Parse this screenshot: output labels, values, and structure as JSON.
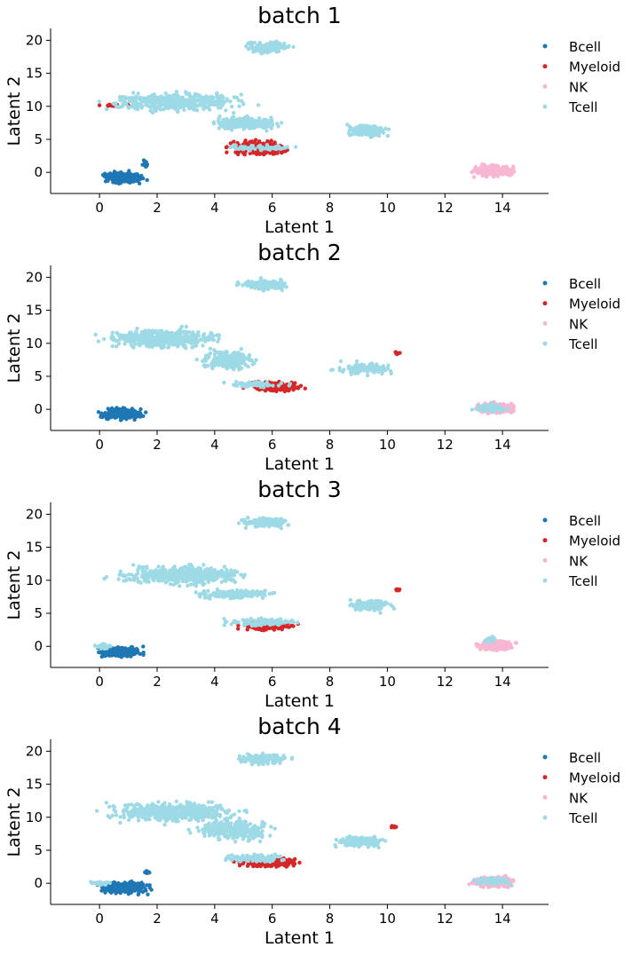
{
  "colors": {
    "Bcell": "#1f77b4",
    "Myeloid": "#d62728",
    "NK": "#f7b6d2",
    "Tcell": "#9edae5"
  },
  "chart_data": [
    {
      "type": "scatter",
      "title": "batch 1",
      "xlabel": "Latent 1",
      "ylabel": "Latent 2",
      "xlim": [
        -1.7,
        15.6
      ],
      "ylim": [
        -3.2,
        21.8
      ],
      "xticks": [
        0,
        2,
        4,
        6,
        8,
        10,
        12,
        14
      ],
      "yticks": [
        0,
        5,
        10,
        15,
        20
      ],
      "legend": {
        "location": "right",
        "entries": [
          "Bcell",
          "Myeloid",
          "NK",
          "Tcell"
        ]
      },
      "series": [
        {
          "name": "Bcell",
          "clusters": [
            {
              "x": [
                -0.4,
                2.0
              ],
              "y": [
                -2.1,
                0.5
              ],
              "weight": 1.0
            },
            {
              "x": [
                1.4,
                1.8
              ],
              "y": [
                0.5,
                2.2
              ],
              "weight": 0.05
            }
          ]
        },
        {
          "name": "Myeloid",
          "clusters": [
            {
              "x": [
                3.9,
                7.1
              ],
              "y": [
                2.0,
                5.4
              ],
              "weight": 1.0
            },
            {
              "x": [
                -0.8,
                1.8
              ],
              "y": [
                9.7,
                10.5
              ],
              "weight": 0.05
            }
          ]
        },
        {
          "name": "NK",
          "clusters": [
            {
              "x": [
                12.6,
                14.8
              ],
              "y": [
                -1.0,
                1.5
              ],
              "weight": 1.0
            }
          ]
        },
        {
          "name": "Tcell",
          "clusters": [
            {
              "x": [
                4.5,
                7.1
              ],
              "y": [
                17.5,
                20.3
              ],
              "weight": 0.5
            },
            {
              "x": [
                -0.9,
                6.4
              ],
              "y": [
                8.5,
                12.8
              ],
              "weight": 1.6
            },
            {
              "x": [
                3.0,
                7.1
              ],
              "y": [
                5.8,
                9.0
              ],
              "weight": 0.8
            },
            {
              "x": [
                8.0,
                10.6
              ],
              "y": [
                4.8,
                7.8
              ],
              "weight": 0.5
            },
            {
              "x": [
                3.8,
                7.3
              ],
              "y": [
                3.0,
                4.5
              ],
              "weight": 0.2
            }
          ]
        }
      ]
    },
    {
      "type": "scatter",
      "title": "batch 2",
      "xlabel": "Latent 1",
      "ylabel": "Latent 2",
      "xlim": [
        -1.7,
        15.6
      ],
      "ylim": [
        -3.2,
        21.8
      ],
      "xticks": [
        0,
        2,
        4,
        6,
        8,
        10,
        12,
        14
      ],
      "yticks": [
        0,
        5,
        10,
        15,
        20
      ],
      "legend": {
        "location": "right",
        "entries": [
          "Bcell",
          "Myeloid",
          "NK",
          "Tcell"
        ]
      },
      "series": [
        {
          "name": "Bcell",
          "clusters": [
            {
              "x": [
                -0.4,
                2.0
              ],
              "y": [
                -2.0,
                0.6
              ],
              "weight": 1.0
            }
          ]
        },
        {
          "name": "Myeloid",
          "clusters": [
            {
              "x": [
                4.6,
                7.6
              ],
              "y": [
                2.3,
                4.5
              ],
              "weight": 0.7
            },
            {
              "x": [
                10.2,
                10.5
              ],
              "y": [
                8.2,
                8.8
              ],
              "weight": 0.03
            }
          ]
        },
        {
          "name": "NK",
          "clusters": [
            {
              "x": [
                12.7,
                14.8
              ],
              "y": [
                -1.0,
                1.4
              ],
              "weight": 1.0
            }
          ]
        },
        {
          "name": "Tcell",
          "clusters": [
            {
              "x": [
                4.3,
                7.1
              ],
              "y": [
                17.5,
                20.2
              ],
              "weight": 0.5
            },
            {
              "x": [
                -0.9,
                5.3
              ],
              "y": [
                8.5,
                13.0
              ],
              "weight": 1.6
            },
            {
              "x": [
                2.8,
                6.0
              ],
              "y": [
                5.0,
                10.0
              ],
              "weight": 0.8
            },
            {
              "x": [
                7.8,
                10.6
              ],
              "y": [
                4.8,
                7.6
              ],
              "weight": 0.5
            },
            {
              "x": [
                3.4,
                7.4
              ],
              "y": [
                3.0,
                4.5
              ],
              "weight": 0.2
            },
            {
              "x": [
                12.6,
                14.6
              ],
              "y": [
                -0.8,
                1.2
              ],
              "weight": 0.2
            }
          ]
        }
      ]
    },
    {
      "type": "scatter",
      "title": "batch 3",
      "xlabel": "Latent 1",
      "ylabel": "Latent 2",
      "xlim": [
        -1.7,
        15.6
      ],
      "ylim": [
        -3.2,
        21.8
      ],
      "xticks": [
        0,
        2,
        4,
        6,
        8,
        10,
        12,
        14
      ],
      "yticks": [
        0,
        5,
        10,
        15,
        20
      ],
      "legend": {
        "location": "right",
        "entries": [
          "Bcell",
          "Myeloid",
          "NK",
          "Tcell"
        ]
      },
      "series": [
        {
          "name": "Bcell",
          "clusters": [
            {
              "x": [
                -0.4,
                1.8
              ],
              "y": [
                -2.1,
                0.4
              ],
              "weight": 1.0
            }
          ]
        },
        {
          "name": "Myeloid",
          "clusters": [
            {
              "x": [
                4.5,
                7.2
              ],
              "y": [
                2.0,
                4.3
              ],
              "weight": 0.7
            },
            {
              "x": [
                10.2,
                10.5
              ],
              "y": [
                8.3,
                8.8
              ],
              "weight": 0.03
            }
          ]
        },
        {
          "name": "NK",
          "clusters": [
            {
              "x": [
                12.8,
                14.8
              ],
              "y": [
                -1.0,
                1.2
              ],
              "weight": 1.0
            }
          ]
        },
        {
          "name": "Tcell",
          "clusters": [
            {
              "x": [
                4.5,
                7.1
              ],
              "y": [
                17.5,
                20.0
              ],
              "weight": 0.5
            },
            {
              "x": [
                -0.8,
                6.4
              ],
              "y": [
                8.5,
                13.0
              ],
              "weight": 1.6
            },
            {
              "x": [
                2.5,
                6.8
              ],
              "y": [
                6.8,
                9.0
              ],
              "weight": 0.7
            },
            {
              "x": [
                8.2,
                10.6
              ],
              "y": [
                4.8,
                7.6
              ],
              "weight": 0.5
            },
            {
              "x": [
                3.6,
                7.5
              ],
              "y": [
                2.6,
                4.6
              ],
              "weight": 0.3
            },
            {
              "x": [
                -0.4,
                0.6
              ],
              "y": [
                -0.6,
                0.6
              ],
              "weight": 0.1
            },
            {
              "x": [
                13.2,
                14.0
              ],
              "y": [
                0.5,
                1.6
              ],
              "weight": 0.1
            }
          ]
        }
      ]
    },
    {
      "type": "scatter",
      "title": "batch 4",
      "xlabel": "Latent 1",
      "ylabel": "Latent 2",
      "xlim": [
        -1.7,
        15.6
      ],
      "ylim": [
        -3.2,
        21.8
      ],
      "xticks": [
        0,
        2,
        4,
        6,
        8,
        10,
        12,
        14
      ],
      "yticks": [
        0,
        5,
        10,
        15,
        20
      ],
      "legend": {
        "location": "right",
        "entries": [
          "Bcell",
          "Myeloid",
          "NK",
          "Tcell"
        ]
      },
      "series": [
        {
          "name": "Bcell",
          "clusters": [
            {
              "x": [
                -0.5,
                2.2
              ],
              "y": [
                -2.1,
                0.8
              ],
              "weight": 1.0
            },
            {
              "x": [
                1.5,
                1.8
              ],
              "y": [
                1.0,
                2.3
              ],
              "weight": 0.03
            }
          ]
        },
        {
          "name": "Myeloid",
          "clusters": [
            {
              "x": [
                4.0,
                7.7
              ],
              "y": [
                2.0,
                4.3
              ],
              "weight": 0.8
            },
            {
              "x": [
                10.0,
                10.5
              ],
              "y": [
                8.3,
                8.8
              ],
              "weight": 0.03
            }
          ]
        },
        {
          "name": "NK",
          "clusters": [
            {
              "x": [
                12.6,
                14.8
              ],
              "y": [
                -1.0,
                1.5
              ],
              "weight": 1.0
            }
          ]
        },
        {
          "name": "Tcell",
          "clusters": [
            {
              "x": [
                4.2,
                7.1
              ],
              "y": [
                17.5,
                20.2
              ],
              "weight": 0.5
            },
            {
              "x": [
                -0.9,
                6.1
              ],
              "y": [
                8.5,
                13.0
              ],
              "weight": 1.6
            },
            {
              "x": [
                2.5,
                6.8
              ],
              "y": [
                5.5,
                10.5
              ],
              "weight": 0.9
            },
            {
              "x": [
                7.6,
                10.5
              ],
              "y": [
                4.8,
                7.8
              ],
              "weight": 0.5
            },
            {
              "x": [
                3.5,
                7.2
              ],
              "y": [
                2.8,
                4.8
              ],
              "weight": 0.3
            },
            {
              "x": [
                -0.5,
                0.6
              ],
              "y": [
                -0.6,
                0.6
              ],
              "weight": 0.1
            },
            {
              "x": [
                12.6,
                14.6
              ],
              "y": [
                -0.6,
                1.4
              ],
              "weight": 0.2
            }
          ]
        }
      ]
    }
  ]
}
